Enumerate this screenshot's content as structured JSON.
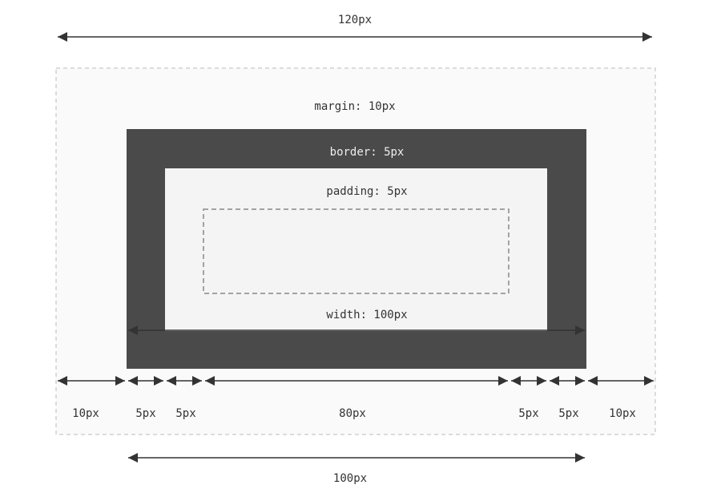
{
  "top_measure": "120px",
  "labels": {
    "margin": "margin: 10px",
    "border": "border: 5px",
    "padding": "padding: 5px",
    "width": "width: 100px"
  },
  "segments": [
    "10px",
    "5px",
    "5px",
    "80px",
    "5px",
    "5px",
    "10px"
  ],
  "bottom_measure": "100px"
}
